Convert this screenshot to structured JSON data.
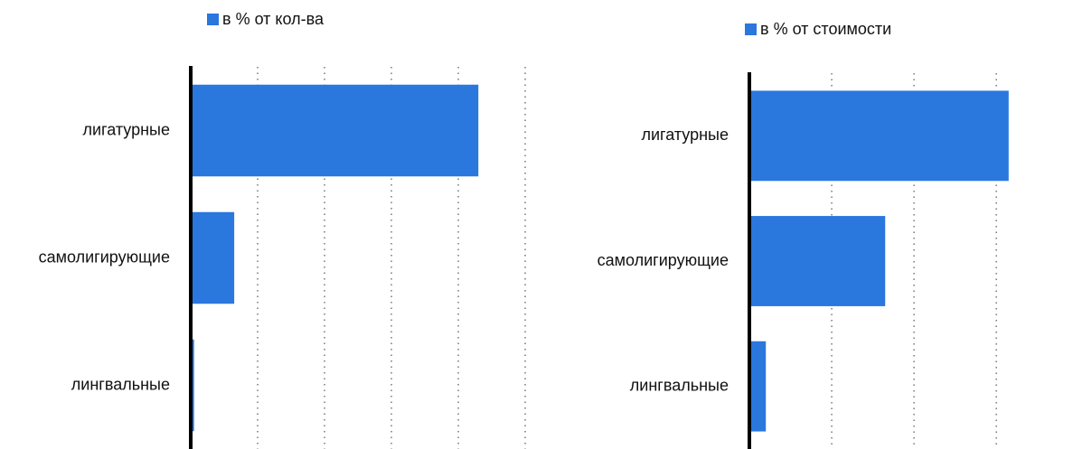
{
  "chart_data": [
    {
      "type": "bar",
      "orientation": "horizontal",
      "categories": [
        "лигатурные",
        "самолигирующие",
        "лингвальные"
      ],
      "series": [
        {
          "name": "в % от кол-ва",
          "color": "#2a77de",
          "values": [
            86,
            13,
            1
          ]
        }
      ],
      "xlim": [
        0,
        100
      ],
      "xticks": [
        0,
        20,
        40,
        60,
        80,
        100
      ],
      "grid": true
    },
    {
      "type": "bar",
      "orientation": "horizontal",
      "categories": [
        "лигатурные",
        "самолигирующие",
        "лингвальные"
      ],
      "series": [
        {
          "name": "в % от стоимости",
          "color": "#2a77de",
          "values": [
            63,
            33,
            4
          ]
        }
      ],
      "xlim": [
        0,
        76
      ],
      "xticks": [
        0,
        20,
        40,
        60
      ],
      "grid": true
    }
  ]
}
